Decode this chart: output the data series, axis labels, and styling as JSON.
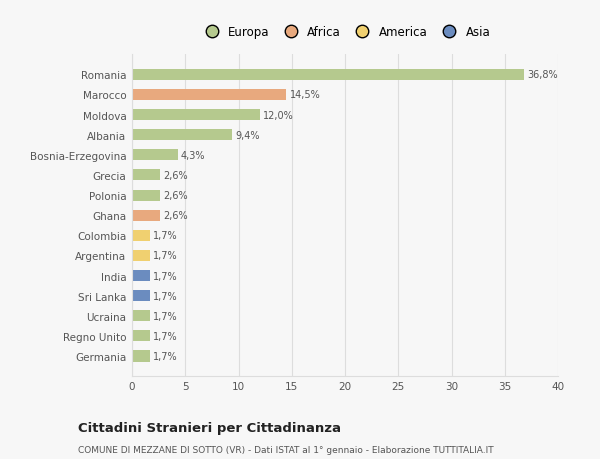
{
  "countries": [
    "Romania",
    "Marocco",
    "Moldova",
    "Albania",
    "Bosnia-Erzegovina",
    "Grecia",
    "Polonia",
    "Ghana",
    "Colombia",
    "Argentina",
    "India",
    "Sri Lanka",
    "Ucraina",
    "Regno Unito",
    "Germania"
  ],
  "values": [
    36.8,
    14.5,
    12.0,
    9.4,
    4.3,
    2.6,
    2.6,
    2.6,
    1.7,
    1.7,
    1.7,
    1.7,
    1.7,
    1.7,
    1.7
  ],
  "labels": [
    "36,8%",
    "14,5%",
    "12,0%",
    "9,4%",
    "4,3%",
    "2,6%",
    "2,6%",
    "2,6%",
    "1,7%",
    "1,7%",
    "1,7%",
    "1,7%",
    "1,7%",
    "1,7%",
    "1,7%"
  ],
  "continents": [
    "Europa",
    "Africa",
    "Europa",
    "Europa",
    "Europa",
    "Europa",
    "Europa",
    "Africa",
    "America",
    "America",
    "Asia",
    "Asia",
    "Europa",
    "Europa",
    "Europa"
  ],
  "colors": {
    "Europa": "#b5c98e",
    "Africa": "#e8a97e",
    "America": "#f0d070",
    "Asia": "#6b8cbf"
  },
  "legend_labels": [
    "Europa",
    "Africa",
    "America",
    "Asia"
  ],
  "legend_colors": [
    "#b5c98e",
    "#e8a97e",
    "#f0d070",
    "#6b8cbf"
  ],
  "title": "Cittadini Stranieri per Cittadinanza",
  "subtitle": "COMUNE DI MEZZANE DI SOTTO (VR) - Dati ISTAT al 1° gennaio - Elaborazione TUTTITALIA.IT",
  "xlim": [
    0,
    40
  ],
  "xticks": [
    0,
    5,
    10,
    15,
    20,
    25,
    30,
    35,
    40
  ],
  "background_color": "#f7f7f7",
  "grid_color": "#dddddd"
}
